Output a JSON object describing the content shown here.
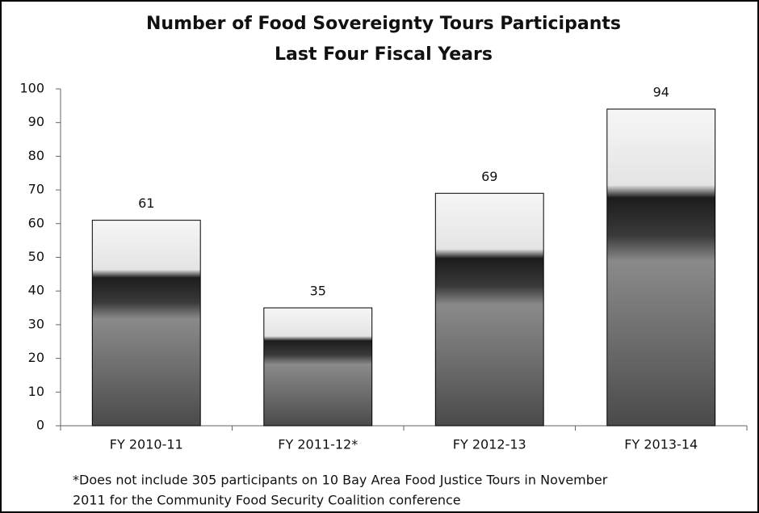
{
  "chart_data": {
    "type": "bar",
    "title": "Number of Food Sovereignty Tours Participants",
    "subtitle": "Last Four Fiscal Years",
    "categories": [
      "FY 2010-11",
      "FY 2011-12*",
      "FY 2012-13",
      "FY 2013-14"
    ],
    "values": [
      61,
      35,
      69,
      94
    ],
    "ylim": [
      0,
      100
    ],
    "yticks": [
      0,
      10,
      20,
      30,
      40,
      50,
      60,
      70,
      80,
      90,
      100
    ],
    "grid": false,
    "note": [
      "*Does not include 305 participants on 10 Bay Area Food Justice Tours in November",
      "2011 for the Community Food Security Coalition conference"
    ]
  }
}
